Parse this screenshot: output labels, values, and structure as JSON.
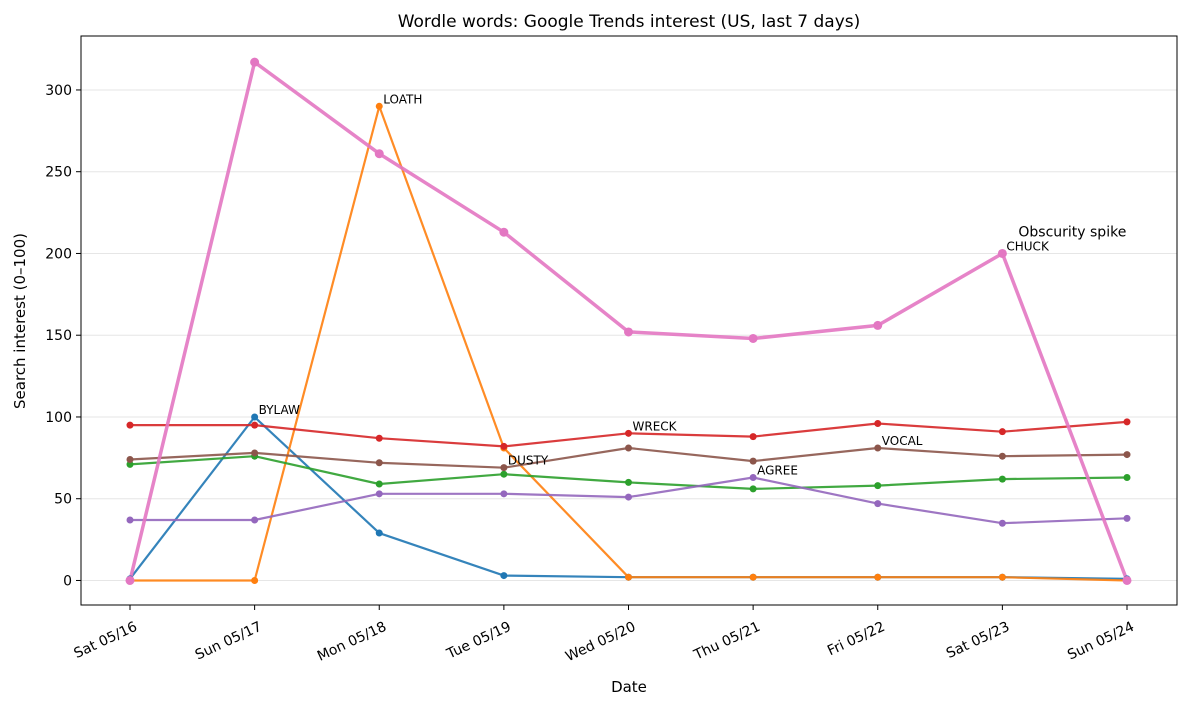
{
  "chart_data": {
    "type": "line",
    "title": "Wordle words: Google Trends interest (US, last 7 days)",
    "xlabel": "Date",
    "ylabel": "Search interest (0–100)",
    "categories": [
      "Sat 05/16",
      "Sun 05/17",
      "Mon 05/18",
      "Tue 05/19",
      "Wed 05/20",
      "Thu 05/21",
      "Fri 05/22",
      "Sat 05/23",
      "Sun 05/24"
    ],
    "ylim": [
      -15,
      333
    ],
    "yticks": [
      0,
      50,
      100,
      150,
      200,
      250,
      300
    ],
    "grid": "horizontal",
    "legend": "none",
    "series": [
      {
        "color": "#1f77b4",
        "values": [
          1,
          100,
          29,
          3,
          2,
          2,
          2,
          2,
          1
        ]
      },
      {
        "color": "#ff7f0e",
        "values": [
          0,
          0,
          290,
          81,
          2,
          2,
          2,
          2,
          0
        ]
      },
      {
        "color": "#2ca02c",
        "values": [
          71,
          76,
          59,
          65,
          60,
          56,
          58,
          62,
          63
        ]
      },
      {
        "color": "#d62728",
        "values": [
          95,
          95,
          87,
          82,
          90,
          88,
          96,
          91,
          97
        ]
      },
      {
        "color": "#9467bd",
        "values": [
          37,
          37,
          53,
          53,
          51,
          63,
          47,
          35,
          38
        ]
      },
      {
        "color": "#8c564b",
        "values": [
          74,
          78,
          72,
          69,
          81,
          73,
          81,
          76,
          77
        ]
      },
      {
        "color": "#e377c2",
        "values": [
          0,
          317,
          261,
          213,
          152,
          148,
          156,
          200,
          0
        ],
        "bold": true
      }
    ],
    "annotations": [
      {
        "text": "BYLAW",
        "x": "Sun 05/17",
        "y": 100
      },
      {
        "text": "LOATH",
        "x": "Mon 05/18",
        "y": 290
      },
      {
        "text": "DUSTY",
        "x": "Tue 05/19",
        "y": 69
      },
      {
        "text": "WRECK",
        "x": "Wed 05/20",
        "y": 90
      },
      {
        "text": "AGREE",
        "x": "Thu 05/21",
        "y": 63
      },
      {
        "text": "VOCAL",
        "x": "Fri 05/22",
        "y": 81
      },
      {
        "text": "CHUCK",
        "x": "Sat 05/23",
        "y": 200
      }
    ],
    "callout": {
      "text": "Obscurity spike",
      "x": "Sat 05/23",
      "y": 200
    }
  }
}
